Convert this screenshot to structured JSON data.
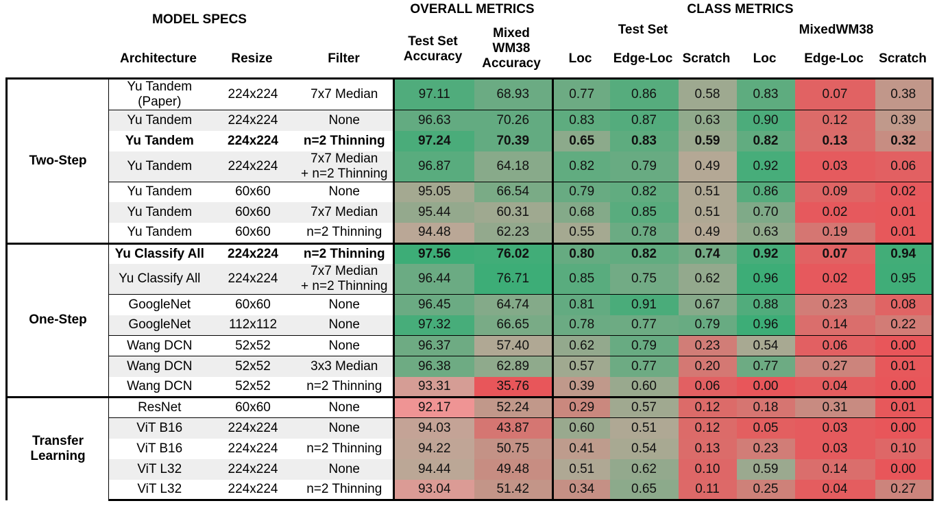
{
  "header": {
    "model_specs": "MODEL SPECS",
    "overall_metrics": "OVERALL METRICS",
    "class_metrics": "CLASS METRICS",
    "test_set_group": "Test Set",
    "mixed_group": "MixedWM38",
    "col_architecture": "Architecture",
    "col_resize": "Resize",
    "col_filter": "Filter",
    "col_test_acc": [
      "Test Set",
      "Accuracy"
    ],
    "col_mixed_acc": [
      "Mixed",
      "WM38",
      "Accuracy"
    ],
    "col_loc": "Loc",
    "col_edge_loc": "Edge-Loc",
    "col_scratch": "Scratch",
    "col_loc2": "Loc",
    "col_edge_loc2": "Edge-Loc",
    "col_scratch2": "Scratch"
  },
  "colors": {
    "green": "#3dad77",
    "red": "#e8565a",
    "neutral": "#b7a896",
    "pink": "#ef9494"
  },
  "groups": [
    {
      "name": [
        "Two-Step"
      ],
      "sep_after": [
        0,
        3
      ],
      "rows": [
        {
          "arch": [
            "Yu Tandem",
            "(Paper)"
          ],
          "resize": "224x224",
          "filter": [
            "7x7 Median"
          ],
          "bold": false,
          "tall": true,
          "values": [
            "97.11",
            "68.93",
            "0.77",
            "0.86",
            "0.58",
            "0.83",
            "0.07",
            "0.38"
          ]
        },
        {
          "arch": [
            "Yu Tandem"
          ],
          "resize": "224x224",
          "filter": [
            "None"
          ],
          "bold": false,
          "tall": false,
          "values": [
            "96.63",
            "70.26",
            "0.83",
            "0.87",
            "0.63",
            "0.90",
            "0.12",
            "0.39"
          ]
        },
        {
          "arch": [
            "Yu Tandem"
          ],
          "resize": "224x224",
          "filter": [
            "n=2 Thinning"
          ],
          "bold": true,
          "tall": false,
          "values": [
            "97.24",
            "70.39",
            "0.65",
            "0.83",
            "0.59",
            "0.82",
            "0.13",
            "0.32"
          ]
        },
        {
          "arch": [
            "Yu Tandem"
          ],
          "resize": "224x224",
          "filter": [
            "7x7 Median",
            "+ n=2 Thinning"
          ],
          "bold": false,
          "tall": true,
          "values": [
            "96.87",
            "64.18",
            "0.82",
            "0.79",
            "0.49",
            "0.92",
            "0.03",
            "0.06"
          ]
        },
        {
          "arch": [
            "Yu Tandem"
          ],
          "resize": "60x60",
          "filter": [
            "None"
          ],
          "bold": false,
          "tall": false,
          "values": [
            "95.05",
            "66.54",
            "0.79",
            "0.82",
            "0.51",
            "0.86",
            "0.09",
            "0.02"
          ]
        },
        {
          "arch": [
            "Yu Tandem"
          ],
          "resize": "60x60",
          "filter": [
            "7x7 Median"
          ],
          "bold": false,
          "tall": false,
          "values": [
            "95.44",
            "60.31",
            "0.68",
            "0.85",
            "0.51",
            "0.70",
            "0.02",
            "0.01"
          ]
        },
        {
          "arch": [
            "Yu Tandem"
          ],
          "resize": "60x60",
          "filter": [
            "n=2 Thinning"
          ],
          "bold": false,
          "tall": false,
          "values": [
            "94.48",
            "62.23",
            "0.55",
            "0.78",
            "0.49",
            "0.63",
            "0.19",
            "0.01"
          ]
        }
      ]
    },
    {
      "name": [
        "One-Step"
      ],
      "sep_after": [
        1,
        3,
        4
      ],
      "rows": [
        {
          "arch": [
            "Yu Classify All"
          ],
          "resize": "224x224",
          "filter": [
            "n=2 Thinning"
          ],
          "bold": true,
          "tall": false,
          "values": [
            "97.56",
            "76.02",
            "0.80",
            "0.82",
            "0.74",
            "0.92",
            "0.07",
            "0.94"
          ]
        },
        {
          "arch": [
            "Yu Classify All"
          ],
          "resize": "224x224",
          "filter": [
            "7x7 Median",
            "+ n=2 Thinning"
          ],
          "bold": false,
          "tall": true,
          "values": [
            "96.44",
            "76.71",
            "0.85",
            "0.75",
            "0.62",
            "0.96",
            "0.02",
            "0.95"
          ]
        },
        {
          "arch": [
            "GoogleNet"
          ],
          "resize": "60x60",
          "filter": [
            "None"
          ],
          "bold": false,
          "tall": false,
          "values": [
            "96.45",
            "64.74",
            "0.81",
            "0.91",
            "0.67",
            "0.88",
            "0.23",
            "0.08"
          ]
        },
        {
          "arch": [
            "GoogleNet"
          ],
          "resize": "112x112",
          "filter": [
            "None"
          ],
          "bold": false,
          "tall": false,
          "values": [
            "97.32",
            "66.65",
            "0.78",
            "0.77",
            "0.79",
            "0.96",
            "0.14",
            "0.22"
          ]
        },
        {
          "arch": [
            "Wang DCN"
          ],
          "resize": "52x52",
          "filter": [
            "None"
          ],
          "bold": false,
          "tall": false,
          "values": [
            "96.37",
            "57.40",
            "0.62",
            "0.79",
            "0.23",
            "0.54",
            "0.06",
            "0.00"
          ]
        },
        {
          "arch": [
            "Wang DCN"
          ],
          "resize": "52x52",
          "filter": [
            "3x3 Median"
          ],
          "bold": false,
          "tall": false,
          "values": [
            "96.38",
            "62.89",
            "0.57",
            "0.77",
            "0.20",
            "0.77",
            "0.27",
            "0.01"
          ]
        },
        {
          "arch": [
            "Wang DCN"
          ],
          "resize": "52x52",
          "filter": [
            "n=2 Thinning"
          ],
          "bold": false,
          "tall": false,
          "values": [
            "93.31",
            "35.76",
            "0.39",
            "0.60",
            "0.06",
            "0.00",
            "0.04",
            "0.00"
          ]
        }
      ]
    },
    {
      "name": [
        "Transfer",
        "Learning"
      ],
      "sep_after": [
        0,
        4
      ],
      "rows": [
        {
          "arch": [
            "ResNet"
          ],
          "resize": "60x60",
          "filter": [
            "None"
          ],
          "bold": false,
          "tall": false,
          "values": [
            "92.17",
            "52.24",
            "0.29",
            "0.57",
            "0.12",
            "0.18",
            "0.31",
            "0.01"
          ]
        },
        {
          "arch": [
            "ViT B16"
          ],
          "resize": "224x224",
          "filter": [
            "None"
          ],
          "bold": false,
          "tall": false,
          "values": [
            "94.03",
            "43.87",
            "0.60",
            "0.51",
            "0.12",
            "0.05",
            "0.03",
            "0.00"
          ]
        },
        {
          "arch": [
            "ViT B16"
          ],
          "resize": "224x224",
          "filter": [
            "n=2 Thinning"
          ],
          "bold": false,
          "tall": false,
          "values": [
            "94.22",
            "50.75",
            "0.41",
            "0.54",
            "0.13",
            "0.23",
            "0.03",
            "0.10"
          ]
        },
        {
          "arch": [
            "ViT L32"
          ],
          "resize": "224x224",
          "filter": [
            "None"
          ],
          "bold": false,
          "tall": false,
          "values": [
            "94.44",
            "49.48",
            "0.51",
            "0.62",
            "0.10",
            "0.59",
            "0.14",
            "0.00"
          ]
        },
        {
          "arch": [
            "ViT L32"
          ],
          "resize": "224x224",
          "filter": [
            "n=2 Thinning"
          ],
          "bold": false,
          "tall": false,
          "values": [
            "93.04",
            "51.42",
            "0.34",
            "0.65",
            "0.11",
            "0.25",
            "0.04",
            "0.27"
          ]
        }
      ]
    }
  ]
}
